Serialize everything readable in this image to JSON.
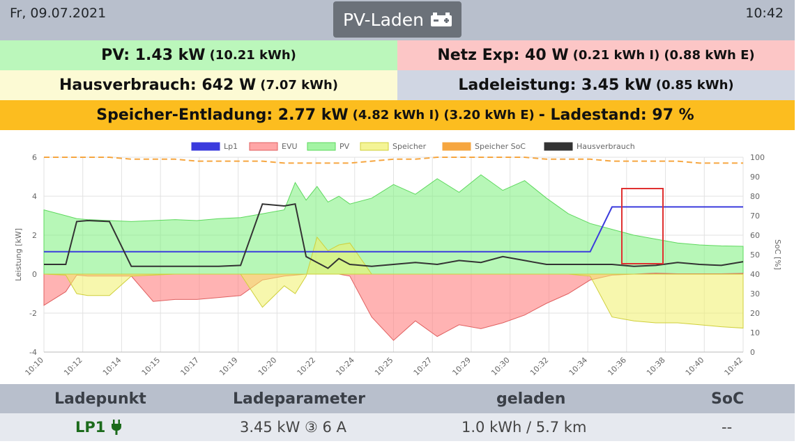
{
  "header": {
    "date": "Fr, 09.07.2021",
    "time": "10:42",
    "mode_label": "PV-Laden",
    "mode_icon": "car-battery-icon"
  },
  "stats": {
    "pv_label": "PV: 1.43 kW",
    "pv_energy": "(10.21 kWh)",
    "netz_label": "Netz Exp: 40 W",
    "netz_import": "(0.21 kWh I)",
    "netz_export": "(0.88 kWh E)",
    "haus_label": "Hausverbrauch: 642 W",
    "haus_energy": "(7.07 kWh)",
    "lade_label": "Ladeleistung: 3.45 kW",
    "lade_energy": "(0.85 kWh)",
    "speicher_label": "Speicher-Entladung: 2.77 kW",
    "speicher_import": "(4.82 kWh I)",
    "speicher_export": "(3.20 kWh E)",
    "ladestand_label": "- Ladestand: 97 %"
  },
  "chart_data": {
    "type": "line",
    "yleft_label": "Leistung [kW]",
    "yright_label": "SoC [%]",
    "yleft_ticks": [
      "6",
      "4",
      "2",
      "0",
      "-2",
      "-4"
    ],
    "yright_ticks": [
      "100",
      "90",
      "80",
      "70",
      "60",
      "50",
      "40",
      "30",
      "20",
      "10",
      "0"
    ],
    "x_ticks": [
      "10:10",
      "10:12",
      "10:14",
      "10:15",
      "10:17",
      "10:19",
      "10:20",
      "10:22",
      "10:24",
      "10:25",
      "10:27",
      "10:29",
      "10:30",
      "10:32",
      "10:34",
      "10:36",
      "10:38",
      "10:40",
      "10:42"
    ],
    "legend": [
      "Lp1",
      "EVU",
      "PV",
      "Speicher",
      "Speicher SoC",
      "Hausverbrauch"
    ],
    "colors": {
      "lp1": "#3b3bdd",
      "evu": "#ff8080",
      "pv": "#7cf07c",
      "speicher": "#f0f06a",
      "soc": "#f6a640",
      "haus": "#333333"
    },
    "grid": true,
    "x_minutes": [
      0,
      1,
      1.5,
      2,
      3,
      4,
      5,
      6,
      7,
      8,
      9,
      10,
      11,
      11.5,
      12,
      12.5,
      13,
      13.5,
      14,
      15,
      16,
      17,
      18,
      19,
      20,
      21,
      22,
      23,
      24,
      25,
      26,
      27,
      28,
      29,
      30,
      31,
      32
    ],
    "pv": [
      3.3,
      3.0,
      2.85,
      2.8,
      2.75,
      2.7,
      2.75,
      2.8,
      2.75,
      2.85,
      2.9,
      3.1,
      3.3,
      4.7,
      3.8,
      4.5,
      3.7,
      4.0,
      3.6,
      3.9,
      4.6,
      4.1,
      4.9,
      4.2,
      5.1,
      4.3,
      4.8,
      3.9,
      3.1,
      2.6,
      2.3,
      2.0,
      1.8,
      1.6,
      1.5,
      1.45,
      1.43
    ],
    "evu": [
      -1.6,
      -0.9,
      -0.05,
      -0.1,
      -0.1,
      -0.1,
      -1.4,
      -1.3,
      -1.3,
      -1.2,
      -1.1,
      -0.3,
      -0.1,
      -0.05,
      0.0,
      0.0,
      0.0,
      0.0,
      -0.1,
      -2.2,
      -3.4,
      -2.4,
      -3.2,
      -2.6,
      -2.8,
      -2.5,
      -2.1,
      -1.5,
      -1.0,
      -0.3,
      -0.05,
      0.0,
      0.05,
      0.02,
      0.02,
      0.02,
      0.04
    ],
    "speicher": [
      0.0,
      -0.05,
      -1.0,
      -1.1,
      -1.1,
      -0.1,
      -0.05,
      0.0,
      0.0,
      0.0,
      0.0,
      -1.7,
      -0.6,
      -1.0,
      -0.1,
      1.9,
      1.2,
      1.5,
      1.6,
      0.0,
      0.0,
      0.0,
      0.0,
      0.0,
      0.0,
      0.0,
      0.0,
      0.0,
      0.0,
      -0.1,
      -2.2,
      -2.4,
      -2.5,
      -2.5,
      -2.6,
      -2.7,
      -2.77
    ],
    "hausverbrauch": [
      0.5,
      0.5,
      2.7,
      2.75,
      2.7,
      0.4,
      0.4,
      0.4,
      0.4,
      0.4,
      0.45,
      3.6,
      3.5,
      3.6,
      0.9,
      0.6,
      0.3,
      0.8,
      0.5,
      0.4,
      0.5,
      0.6,
      0.5,
      0.7,
      0.6,
      0.9,
      0.7,
      0.5,
      0.5,
      0.5,
      0.5,
      0.4,
      0.45,
      0.6,
      0.5,
      0.45,
      0.64
    ],
    "lp1": [
      1.15,
      1.15,
      1.15,
      1.15,
      1.15,
      1.15,
      1.15,
      1.15,
      1.15,
      1.15,
      1.15,
      1.15,
      1.15,
      1.15,
      1.15,
      1.15,
      1.15,
      1.15,
      1.15,
      1.15,
      1.15,
      1.15,
      1.15,
      1.15,
      1.15,
      1.15,
      1.15,
      1.15,
      1.15,
      1.15,
      3.45,
      3.45,
      3.45,
      3.45,
      3.45,
      3.45,
      3.45
    ],
    "soc": [
      100,
      100,
      100,
      100,
      100,
      99,
      99,
      99,
      98,
      98,
      98,
      98,
      97,
      97,
      97,
      97,
      97,
      97,
      97,
      98,
      99,
      99,
      100,
      100,
      100,
      100,
      100,
      99,
      99,
      99,
      98,
      98,
      98,
      98,
      97,
      97,
      97
    ]
  },
  "table": {
    "headers": [
      "Ladepunkt",
      "Ladeparameter",
      "geladen",
      "SoC"
    ],
    "row": {
      "ladepunkt": "LP1",
      "parameter": "3.45 kW ③ 6 A",
      "geladen": "1.0 kWh / 5.7 km",
      "soc": "--"
    }
  }
}
